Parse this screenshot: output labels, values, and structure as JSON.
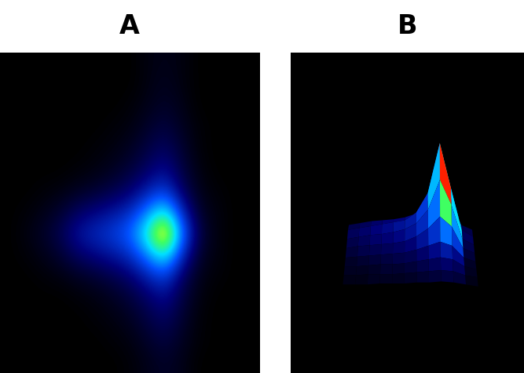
{
  "chart_data": [
    {
      "type": "heatmap",
      "title": "A",
      "tick_labels": false,
      "cells": [
        [
          0,
          0,
          0,
          0,
          0,
          0,
          0,
          0,
          0.02,
          0.03,
          0.02,
          0,
          0,
          0,
          0
        ],
        [
          0,
          0,
          0,
          0,
          0,
          0,
          0,
          0,
          0.02,
          0.04,
          0.02,
          0,
          0,
          0,
          0
        ],
        [
          0,
          0,
          0,
          0,
          0,
          0,
          0,
          0.01,
          0.03,
          0.05,
          0.03,
          0,
          0,
          0,
          0
        ],
        [
          0,
          0,
          0,
          0,
          0,
          0,
          0.01,
          0.02,
          0.05,
          0.08,
          0.04,
          0.01,
          0,
          0,
          0
        ],
        [
          0,
          0,
          0,
          0,
          0,
          0.01,
          0.02,
          0.04,
          0.08,
          0.12,
          0.06,
          0.01,
          0,
          0,
          0
        ],
        [
          0,
          0,
          0,
          0,
          0.01,
          0.02,
          0.04,
          0.07,
          0.12,
          0.18,
          0.08,
          0.02,
          0,
          0,
          0
        ],
        [
          0,
          0,
          0.01,
          0.02,
          0.04,
          0.06,
          0.09,
          0.13,
          0.22,
          0.3,
          0.12,
          0.03,
          0.01,
          0,
          0
        ],
        [
          0,
          0.01,
          0.03,
          0.06,
          0.12,
          0.16,
          0.2,
          0.26,
          0.42,
          0.62,
          0.25,
          0.05,
          0.02,
          0,
          0
        ],
        [
          0,
          0.02,
          0.05,
          0.1,
          0.2,
          0.25,
          0.3,
          0.38,
          0.62,
          1.0,
          0.4,
          0.08,
          0.02,
          0,
          0
        ],
        [
          0,
          0.01,
          0.03,
          0.06,
          0.12,
          0.16,
          0.2,
          0.26,
          0.42,
          0.62,
          0.25,
          0.05,
          0.02,
          0,
          0
        ],
        [
          0,
          0,
          0.01,
          0.02,
          0.04,
          0.06,
          0.09,
          0.13,
          0.22,
          0.3,
          0.12,
          0.03,
          0.01,
          0,
          0
        ],
        [
          0,
          0,
          0,
          0,
          0.01,
          0.02,
          0.04,
          0.07,
          0.12,
          0.18,
          0.08,
          0.02,
          0,
          0,
          0
        ],
        [
          0,
          0,
          0,
          0,
          0,
          0.01,
          0.02,
          0.04,
          0.08,
          0.12,
          0.06,
          0.01,
          0,
          0,
          0
        ],
        [
          0,
          0,
          0,
          0,
          0,
          0,
          0.01,
          0.02,
          0.05,
          0.08,
          0.04,
          0.01,
          0,
          0,
          0
        ],
        [
          0,
          0,
          0,
          0,
          0,
          0,
          0,
          0.01,
          0.03,
          0.05,
          0.03,
          0,
          0,
          0,
          0
        ]
      ]
    },
    {
      "type": "surface",
      "title": "B",
      "tick_labels": false,
      "cells": [
        [
          0.1,
          0.12,
          0.14,
          0.15,
          0.16,
          0.18,
          0.22,
          0.35,
          0.6,
          0.4,
          0.1,
          0.05
        ],
        [
          0.12,
          0.14,
          0.16,
          0.18,
          0.2,
          0.22,
          0.3,
          0.5,
          1.0,
          0.55,
          0.12,
          0.05
        ],
        [
          0.1,
          0.12,
          0.14,
          0.15,
          0.17,
          0.2,
          0.26,
          0.4,
          0.7,
          0.45,
          0.1,
          0.04
        ],
        [
          0.08,
          0.1,
          0.11,
          0.12,
          0.13,
          0.15,
          0.2,
          0.28,
          0.4,
          0.3,
          0.08,
          0.03
        ],
        [
          0.06,
          0.07,
          0.08,
          0.09,
          0.1,
          0.11,
          0.14,
          0.18,
          0.22,
          0.18,
          0.06,
          0.02
        ],
        [
          0.05,
          0.05,
          0.06,
          0.07,
          0.07,
          0.08,
          0.1,
          0.12,
          0.14,
          0.12,
          0.05,
          0.02
        ],
        [
          0.04,
          0.04,
          0.05,
          0.05,
          0.05,
          0.06,
          0.07,
          0.08,
          0.09,
          0.08,
          0.04,
          0.02
        ],
        [
          0.03,
          0.03,
          0.03,
          0.04,
          0.04,
          0.04,
          0.05,
          0.05,
          0.06,
          0.05,
          0.03,
          0.01
        ]
      ]
    }
  ]
}
